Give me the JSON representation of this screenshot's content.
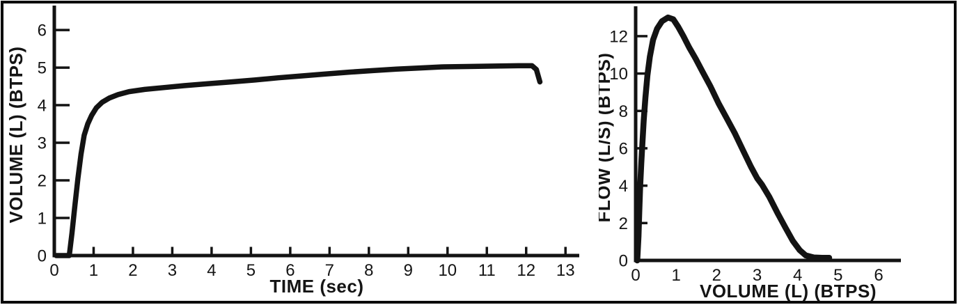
{
  "figure": {
    "kind": "spirometry-figure",
    "panel_count": 2
  },
  "chart_data": [
    {
      "type": "line",
      "title": "",
      "xlabel": "TIME (sec)",
      "ylabel": "VOLUME (L) (BTPS)",
      "xlim": [
        0,
        13.35
      ],
      "ylim": [
        0,
        6.65
      ],
      "xticks": [
        0,
        1,
        2,
        3,
        4,
        5,
        6,
        7,
        8,
        9,
        10,
        11,
        12,
        13
      ],
      "yticks": [
        0,
        1,
        2,
        3,
        4,
        5,
        6
      ],
      "grid": false,
      "legend": null,
      "line_color": "#131313",
      "series": [
        {
          "name": "volume-time-curve",
          "points": [
            [
              0.05,
              0.0
            ],
            [
              0.38,
              0.0
            ],
            [
              0.45,
              0.6
            ],
            [
              0.52,
              1.3
            ],
            [
              0.6,
              2.05
            ],
            [
              0.68,
              2.7
            ],
            [
              0.76,
              3.2
            ],
            [
              0.85,
              3.5
            ],
            [
              0.95,
              3.73
            ],
            [
              1.07,
              3.93
            ],
            [
              1.22,
              4.08
            ],
            [
              1.4,
              4.19
            ],
            [
              1.62,
              4.28
            ],
            [
              1.9,
              4.36
            ],
            [
              2.3,
              4.42
            ],
            [
              2.8,
              4.47
            ],
            [
              3.3,
              4.52
            ],
            [
              3.9,
              4.57
            ],
            [
              4.5,
              4.62
            ],
            [
              5.1,
              4.67
            ],
            [
              5.7,
              4.73
            ],
            [
              6.3,
              4.78
            ],
            [
              6.9,
              4.83
            ],
            [
              7.5,
              4.88
            ],
            [
              8.1,
              4.92
            ],
            [
              8.7,
              4.96
            ],
            [
              9.3,
              4.99
            ],
            [
              9.9,
              5.02
            ],
            [
              10.5,
              5.03
            ],
            [
              11.2,
              5.04
            ],
            [
              11.8,
              5.05
            ],
            [
              12.15,
              5.05
            ],
            [
              12.26,
              4.95
            ],
            [
              12.35,
              4.62
            ]
          ]
        }
      ]
    },
    {
      "type": "line",
      "title": "",
      "xlabel": "VOLUME (L) (BTPS)",
      "ylabel": "FLOW (L/S) (BTPS)",
      "xlim": [
        0,
        6.55
      ],
      "ylim": [
        0,
        13.6
      ],
      "xticks": [
        0,
        1,
        2,
        3,
        4,
        5,
        6
      ],
      "yticks": [
        0,
        2,
        4,
        6,
        8,
        10,
        12
      ],
      "grid": false,
      "legend": null,
      "line_color": "#131313",
      "series": [
        {
          "name": "flow-volume-curve",
          "points": [
            [
              0.04,
              0.0
            ],
            [
              0.07,
              1.3
            ],
            [
              0.09,
              2.6
            ],
            [
              0.11,
              3.9
            ],
            [
              0.14,
              5.2
            ],
            [
              0.17,
              6.4
            ],
            [
              0.2,
              7.5
            ],
            [
              0.24,
              8.7
            ],
            [
              0.29,
              9.9
            ],
            [
              0.35,
              10.9
            ],
            [
              0.43,
              11.8
            ],
            [
              0.53,
              12.4
            ],
            [
              0.65,
              12.8
            ],
            [
              0.8,
              13.0
            ],
            [
              0.93,
              12.9
            ],
            [
              1.05,
              12.5
            ],
            [
              1.18,
              12.0
            ],
            [
              1.32,
              11.4
            ],
            [
              1.48,
              10.8
            ],
            [
              1.65,
              10.1
            ],
            [
              1.85,
              9.3
            ],
            [
              2.05,
              8.4
            ],
            [
              2.25,
              7.6
            ],
            [
              2.45,
              6.8
            ],
            [
              2.65,
              5.9
            ],
            [
              2.85,
              5.0
            ],
            [
              3.0,
              4.4
            ],
            [
              3.12,
              4.05
            ],
            [
              3.3,
              3.4
            ],
            [
              3.5,
              2.55
            ],
            [
              3.7,
              1.75
            ],
            [
              3.88,
              1.05
            ],
            [
              4.05,
              0.55
            ],
            [
              4.2,
              0.27
            ],
            [
              4.4,
              0.16
            ],
            [
              4.6,
              0.14
            ],
            [
              4.78,
              0.14
            ]
          ]
        }
      ]
    }
  ]
}
